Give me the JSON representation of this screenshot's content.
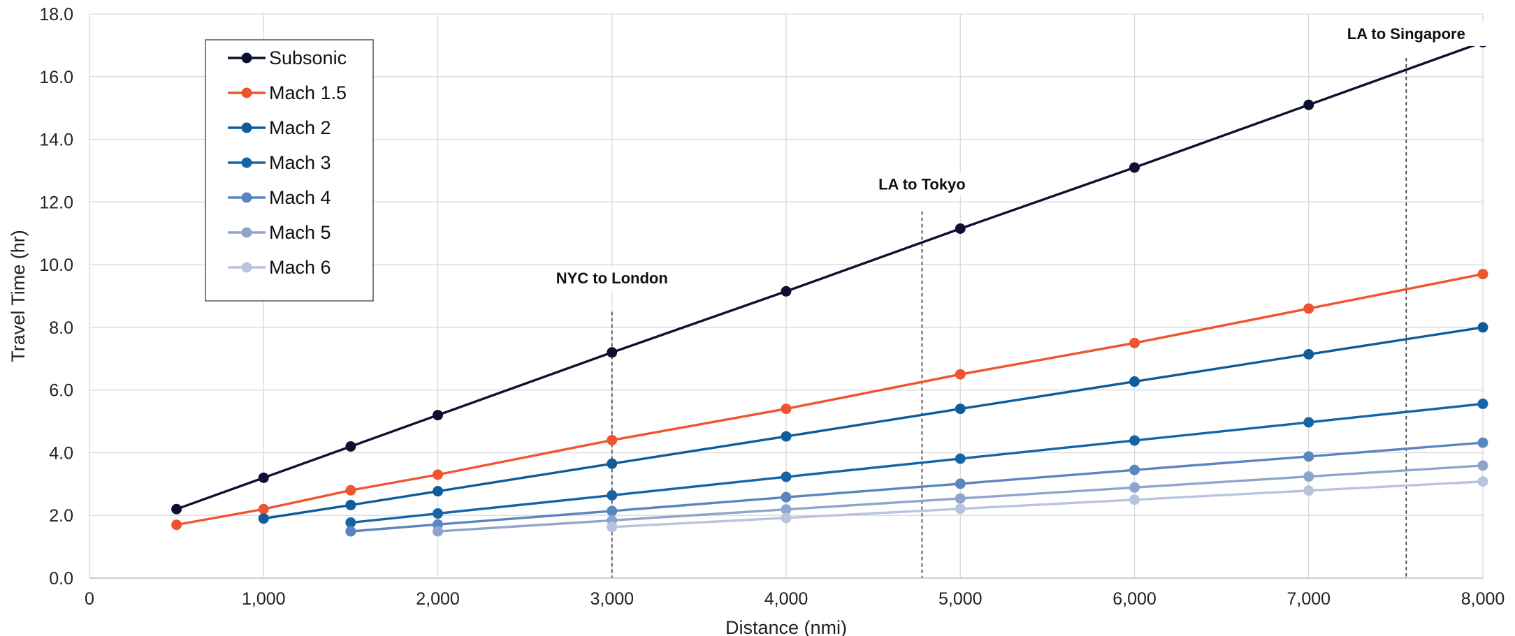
{
  "chart_data": {
    "type": "line",
    "title": "",
    "xlabel": "Distance (nmi)",
    "ylabel": "Travel Time (hr)",
    "xlim": [
      0,
      8000
    ],
    "ylim": [
      0,
      18
    ],
    "x_ticks": [
      0,
      1000,
      2000,
      3000,
      4000,
      5000,
      6000,
      7000,
      8000
    ],
    "x_tick_labels": [
      "0",
      "1,000",
      "2,000",
      "3,000",
      "4,000",
      "5,000",
      "6,000",
      "7,000",
      "8,000"
    ],
    "y_ticks": [
      0,
      2,
      4,
      6,
      8,
      10,
      12,
      14,
      16,
      18
    ],
    "y_tick_labels": [
      "0.0",
      "2.0",
      "4.0",
      "6.0",
      "8.0",
      "10.0",
      "12.0",
      "14.0",
      "16.0",
      "18.0"
    ],
    "grid": true,
    "legend_position": "top-left",
    "series": [
      {
        "name": "Subsonic",
        "color": "#0d1030",
        "x": [
          500,
          1000,
          1500,
          2000,
          3000,
          4000,
          5000,
          6000,
          7000,
          8000
        ],
        "values": [
          2.2,
          3.2,
          4.2,
          5.2,
          7.2,
          9.15,
          11.15,
          13.1,
          15.1,
          17.1
        ]
      },
      {
        "name": "Mach 1.5",
        "color": "#f0532f",
        "x": [
          500,
          1000,
          1500,
          2000,
          3000,
          4000,
          5000,
          6000,
          7000,
          8000
        ],
        "values": [
          1.7,
          2.2,
          2.8,
          3.3,
          4.4,
          5.4,
          6.5,
          7.5,
          8.6,
          9.7
        ]
      },
      {
        "name": "Mach 2",
        "color": "#0f5c9a",
        "x": [
          1000,
          1500,
          2000,
          3000,
          4000,
          5000,
          6000,
          7000,
          8000
        ],
        "values": [
          1.9,
          2.33,
          2.77,
          3.65,
          4.52,
          5.4,
          6.27,
          7.14,
          8.0
        ]
      },
      {
        "name": "Mach 3",
        "color": "#1565a6",
        "x": [
          1500,
          2000,
          3000,
          4000,
          5000,
          6000,
          7000,
          8000
        ],
        "values": [
          1.77,
          2.06,
          2.64,
          3.23,
          3.81,
          4.39,
          4.97,
          5.56
        ]
      },
      {
        "name": "Mach 4",
        "color": "#5b85be",
        "x": [
          1500,
          2000,
          3000,
          4000,
          5000,
          6000,
          7000,
          8000
        ],
        "values": [
          1.49,
          1.71,
          2.14,
          2.58,
          3.01,
          3.45,
          3.88,
          4.32
        ]
      },
      {
        "name": "Mach 5",
        "color": "#8fa4cd",
        "x": [
          2000,
          3000,
          4000,
          5000,
          6000,
          7000,
          8000
        ],
        "values": [
          1.49,
          1.84,
          2.19,
          2.54,
          2.89,
          3.24,
          3.59
        ]
      },
      {
        "name": "Mach 6",
        "color": "#b8c4de",
        "x": [
          3000,
          4000,
          5000,
          6000,
          7000,
          8000
        ],
        "values": [
          1.63,
          1.92,
          2.21,
          2.5,
          2.79,
          3.08
        ]
      }
    ],
    "annotations": [
      {
        "label": "NYC to London",
        "x": 3000,
        "y_label": 9.4,
        "y_line_top": 8.5
      },
      {
        "label": "LA to Tokyo",
        "x": 4780,
        "y_label": 12.4,
        "y_line_top": 11.7
      },
      {
        "label": "LA to Singapore",
        "x": 7560,
        "y_label": 17.2,
        "y_line_top": 16.6
      }
    ]
  }
}
